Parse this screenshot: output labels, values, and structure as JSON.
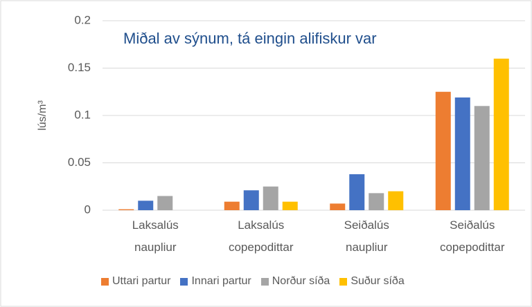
{
  "chart_data": {
    "type": "bar",
    "title": "Miðal av sýnum, tá eingin alifiskur var",
    "y_label": "lús/m³",
    "categories": [
      "Laksalús\nnaupliur",
      "Laksalús\ncopepodittar",
      "Seiðalús\nnaupliur",
      "Seiðalús\ncopepodittar"
    ],
    "series": [
      {
        "name": "Uttari partur",
        "color": "#ed7d31",
        "values": [
          0.001,
          0.009,
          0.007,
          0.125
        ]
      },
      {
        "name": "Innari partur",
        "color": "#4472c4",
        "values": [
          0.01,
          0.021,
          0.038,
          0.119
        ]
      },
      {
        "name": "Norður síða",
        "color": "#a5a5a5",
        "values": [
          0.015,
          0.025,
          0.018,
          0.11
        ]
      },
      {
        "name": "Suður síða",
        "color": "#ffc000",
        "values": [
          0,
          0.009,
          0.02,
          0.16
        ]
      }
    ],
    "ylim": [
      0,
      0.2
    ],
    "yticks": [
      0,
      0.05,
      0.1,
      0.15,
      0.2
    ],
    "grid": true,
    "legend": "bottom"
  }
}
